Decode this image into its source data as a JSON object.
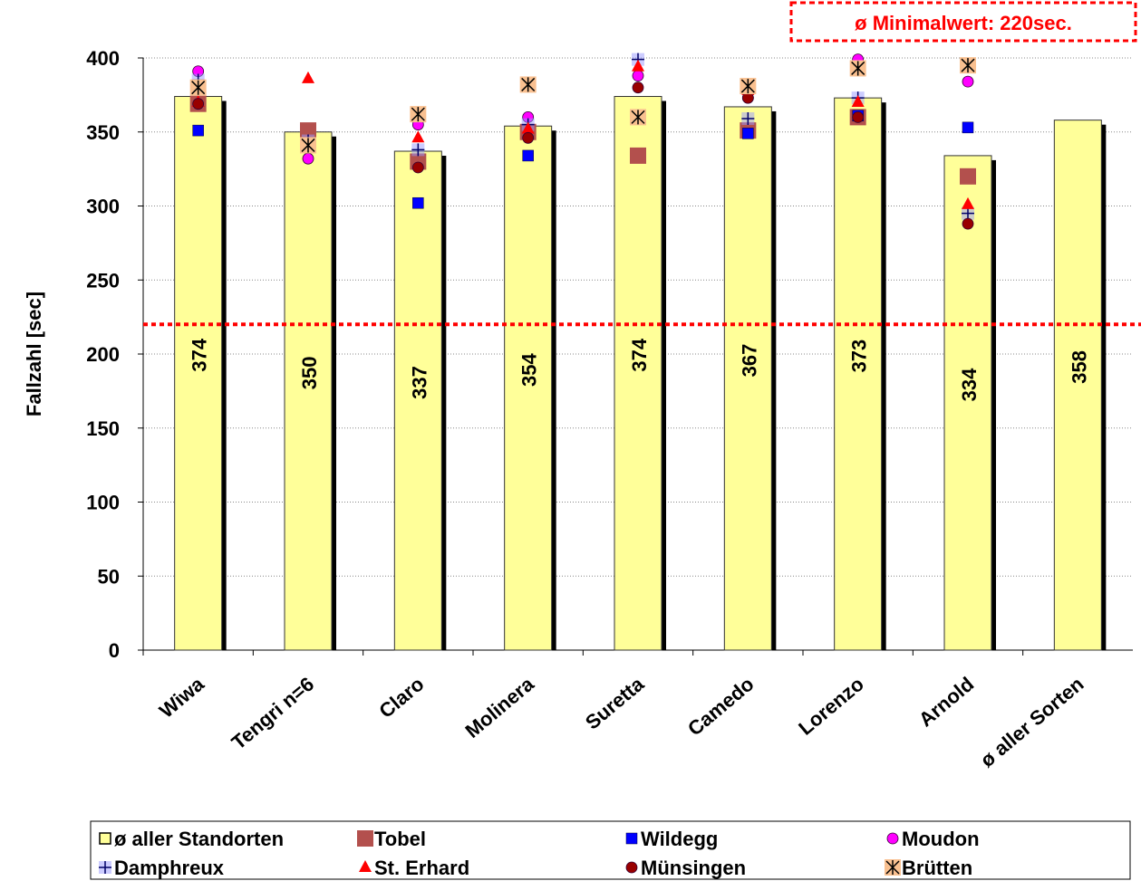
{
  "chart_data": {
    "type": "bar",
    "annotation": "ø Minimalwert: 220sec.",
    "reference_line": {
      "value": 220,
      "color": "#ff0000"
    },
    "y_label": "Fallzahl [sec]",
    "ylim": [
      0,
      400
    ],
    "yticks": [
      0,
      50,
      100,
      150,
      200,
      250,
      300,
      350,
      400
    ],
    "grid": true,
    "categories": [
      "Wiwa",
      "Tengri n=6",
      "Claro",
      "Molinera",
      "Suretta",
      "Camedo",
      "Lorenzo",
      "Arnold",
      "ø aller Sorten"
    ],
    "series": [
      {
        "name": "ø aller Standorten",
        "type": "bar",
        "color": "#ffff99",
        "values": [
          374,
          350,
          337,
          354,
          374,
          367,
          373,
          334,
          358
        ]
      },
      {
        "name": "Tobel",
        "type": "scatter",
        "marker": "square",
        "color": "#b3504d",
        "values": [
          369,
          351,
          330,
          350,
          334,
          351,
          360,
          320,
          null
        ]
      },
      {
        "name": "Wildegg",
        "type": "scatter",
        "marker": "small-square",
        "color": "#0000ff",
        "values": [
          351,
          null,
          302,
          334,
          null,
          349,
          361,
          353,
          null
        ]
      },
      {
        "name": "Moudon",
        "type": "scatter",
        "marker": "circle",
        "color": "#ff00ff",
        "values": [
          391,
          332,
          355,
          360,
          388,
          373,
          399,
          384,
          null
        ]
      },
      {
        "name": "Damphreux",
        "type": "scatter",
        "marker": "plus",
        "color": "#9999ff",
        "values": [
          385,
          344,
          338,
          355,
          399,
          359,
          373,
          295,
          null
        ]
      },
      {
        "name": "St. Erhard",
        "type": "scatter",
        "marker": "triangle",
        "color": "#ff0000",
        "values": [
          370,
          386,
          346,
          352,
          394,
          378,
          370,
          301,
          null
        ]
      },
      {
        "name": "Münsingen",
        "type": "scatter",
        "marker": "circle",
        "color": "#990000",
        "values": [
          369,
          null,
          326,
          346,
          380,
          373,
          360,
          288,
          null
        ]
      },
      {
        "name": "Brütten",
        "type": "scatter",
        "marker": "asterisk",
        "color": "#f9c090",
        "values": [
          380,
          341,
          362,
          382,
          360,
          381,
          393,
          395,
          null
        ]
      }
    ]
  }
}
